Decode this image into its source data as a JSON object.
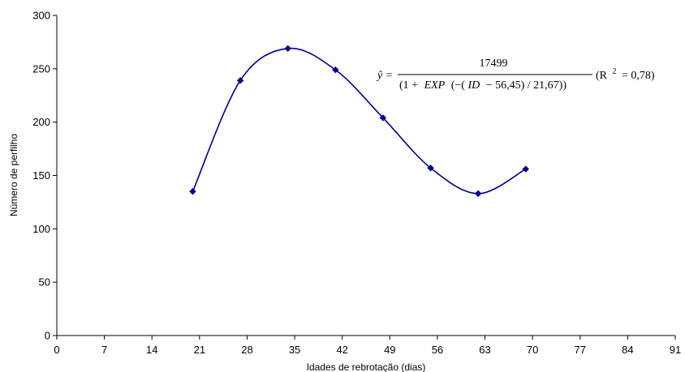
{
  "chart_data": {
    "type": "scatter",
    "xlabel": "Idades de rebrotação (dias)",
    "ylabel": "Número de perfilho",
    "xlim": [
      0,
      91
    ],
    "ylim": [
      0,
      300
    ],
    "x_ticks": [
      "0",
      "7",
      "14",
      "21",
      "28",
      "35",
      "42",
      "49",
      "56",
      "63",
      "70",
      "77",
      "84",
      "91"
    ],
    "y_ticks": [
      "0",
      "50",
      "100",
      "150",
      "200",
      "250",
      "300"
    ],
    "grid": false,
    "series": [
      {
        "x": [
          20,
          27,
          34,
          41,
          48,
          55,
          62,
          69
        ],
        "y": [
          135,
          239,
          269,
          249,
          204,
          157,
          133,
          156
        ],
        "color": "#00008B",
        "marker": "diamond",
        "smooth_line": true
      }
    ],
    "annotation": {
      "lhs": "ŷ =",
      "numerator": "17499",
      "den_open": "(1 +",
      "den_exp": "EXP",
      "den_mid1": "(−(",
      "den_id": "ID",
      "den_rest": "− 56,45) / 21,67))",
      "r2_open": "(R",
      "r2_sup": "2",
      "r2_close": "= 0,78)"
    }
  }
}
